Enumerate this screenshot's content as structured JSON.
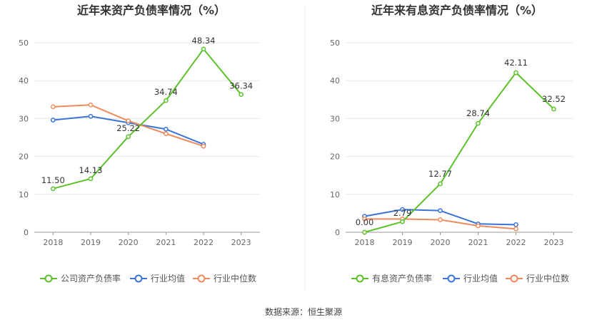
{
  "source_text": "数据来源：恒生聚源",
  "colors": {
    "green": "#5cc12a",
    "blue": "#3a74d8",
    "orange": "#ee8a5b",
    "grid": "#e4e8f0",
    "axis": "#999999"
  },
  "chart_data": [
    {
      "type": "line",
      "title": "近年来资产负债率情况（%）",
      "categories": [
        "2018",
        "2019",
        "2020",
        "2021",
        "2022",
        "2023"
      ],
      "ylim": [
        0,
        50
      ],
      "yticks": [
        0,
        10,
        20,
        30,
        40,
        50
      ],
      "grid": true,
      "legend_position": "bottom",
      "series": [
        {
          "name": "公司资产负债率",
          "color": "#5cc12a",
          "values": [
            11.5,
            14.13,
            25.22,
            34.74,
            48.34,
            36.34
          ],
          "labels": [
            "11.50",
            "14.13",
            "25.22",
            "34.74",
            "48.34",
            "36.34"
          ]
        },
        {
          "name": "行业均值",
          "color": "#3a74d8",
          "values": [
            29.6,
            30.6,
            28.9,
            27.2,
            23.2,
            null
          ],
          "labels": []
        },
        {
          "name": "行业中位数",
          "color": "#ee8a5b",
          "values": [
            33.1,
            33.6,
            29.4,
            26.0,
            22.7,
            null
          ],
          "labels": []
        }
      ]
    },
    {
      "type": "line",
      "title": "近年来有息资产负债率情况（%）",
      "categories": [
        "2018",
        "2019",
        "2020",
        "2021",
        "2022",
        "2023"
      ],
      "ylim": [
        0,
        50
      ],
      "yticks": [
        0,
        10,
        20,
        30,
        40,
        50
      ],
      "grid": true,
      "legend_position": "bottom",
      "series": [
        {
          "name": "有息资产负债率",
          "color": "#5cc12a",
          "values": [
            0.0,
            2.79,
            12.77,
            28.74,
            42.11,
            32.52
          ],
          "labels": [
            "0.00",
            "2.79",
            "12.77",
            "28.74",
            "42.11",
            "32.52"
          ]
        },
        {
          "name": "行业均值",
          "color": "#3a74d8",
          "values": [
            4.2,
            6.0,
            5.7,
            2.2,
            2.0,
            null
          ],
          "labels": []
        },
        {
          "name": "行业中位数",
          "color": "#ee8a5b",
          "values": [
            3.5,
            3.5,
            3.3,
            1.7,
            0.9,
            null
          ],
          "labels": []
        }
      ]
    }
  ]
}
